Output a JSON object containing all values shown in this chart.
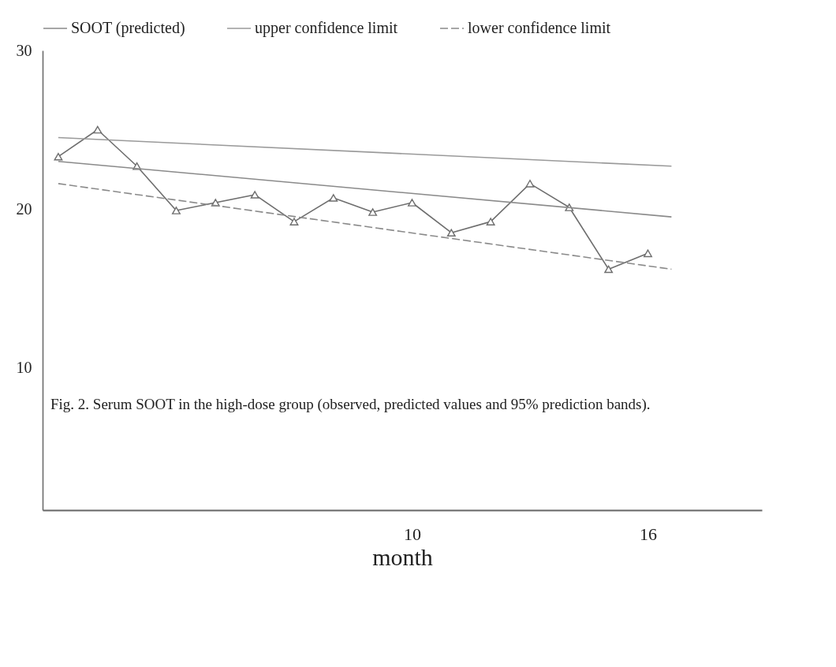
{
  "chart_data": {
    "type": "line",
    "xlabel": "month",
    "xlim": [
      0.6,
      18.9
    ],
    "xticks": [
      10,
      16
    ],
    "ylim": [
      1,
      30
    ],
    "yticks": [
      10,
      20,
      30
    ],
    "grid": false,
    "legend": "top",
    "annotations": [
      "Fig. 2. Serum SOOT in the high-dose group (observed, predicted values and 95% prediction bands)."
    ],
    "series": [
      {
        "color": "#6e6e6e",
        "marker": "triangle",
        "line_style": "solid",
        "x": [
          1,
          2,
          3,
          4,
          5,
          6,
          7,
          8,
          9,
          10,
          11,
          12,
          13,
          14,
          15,
          16
        ],
        "values": [
          23.3,
          25.0,
          22.7,
          19.9,
          20.4,
          20.9,
          19.2,
          20.7,
          19.8,
          20.4,
          18.5,
          19.2,
          21.6,
          20.1,
          16.2,
          17.2
        ]
      },
      {
        "name": "SOOT (predicted)",
        "color": "#8a8a8a",
        "line_style": "solid",
        "x": [
          1,
          16.6
        ],
        "values": [
          23.0,
          19.5
        ]
      },
      {
        "name": "upper confidence limit",
        "color": "#9a9a9a",
        "line_style": "solid",
        "x": [
          1,
          16.6
        ],
        "values": [
          24.5,
          22.7
        ]
      },
      {
        "name": "lower confidence limit",
        "color": "#8a8a8a",
        "line_style": "dashed",
        "x": [
          1,
          16.6
        ],
        "values": [
          21.6,
          16.2
        ]
      }
    ]
  }
}
